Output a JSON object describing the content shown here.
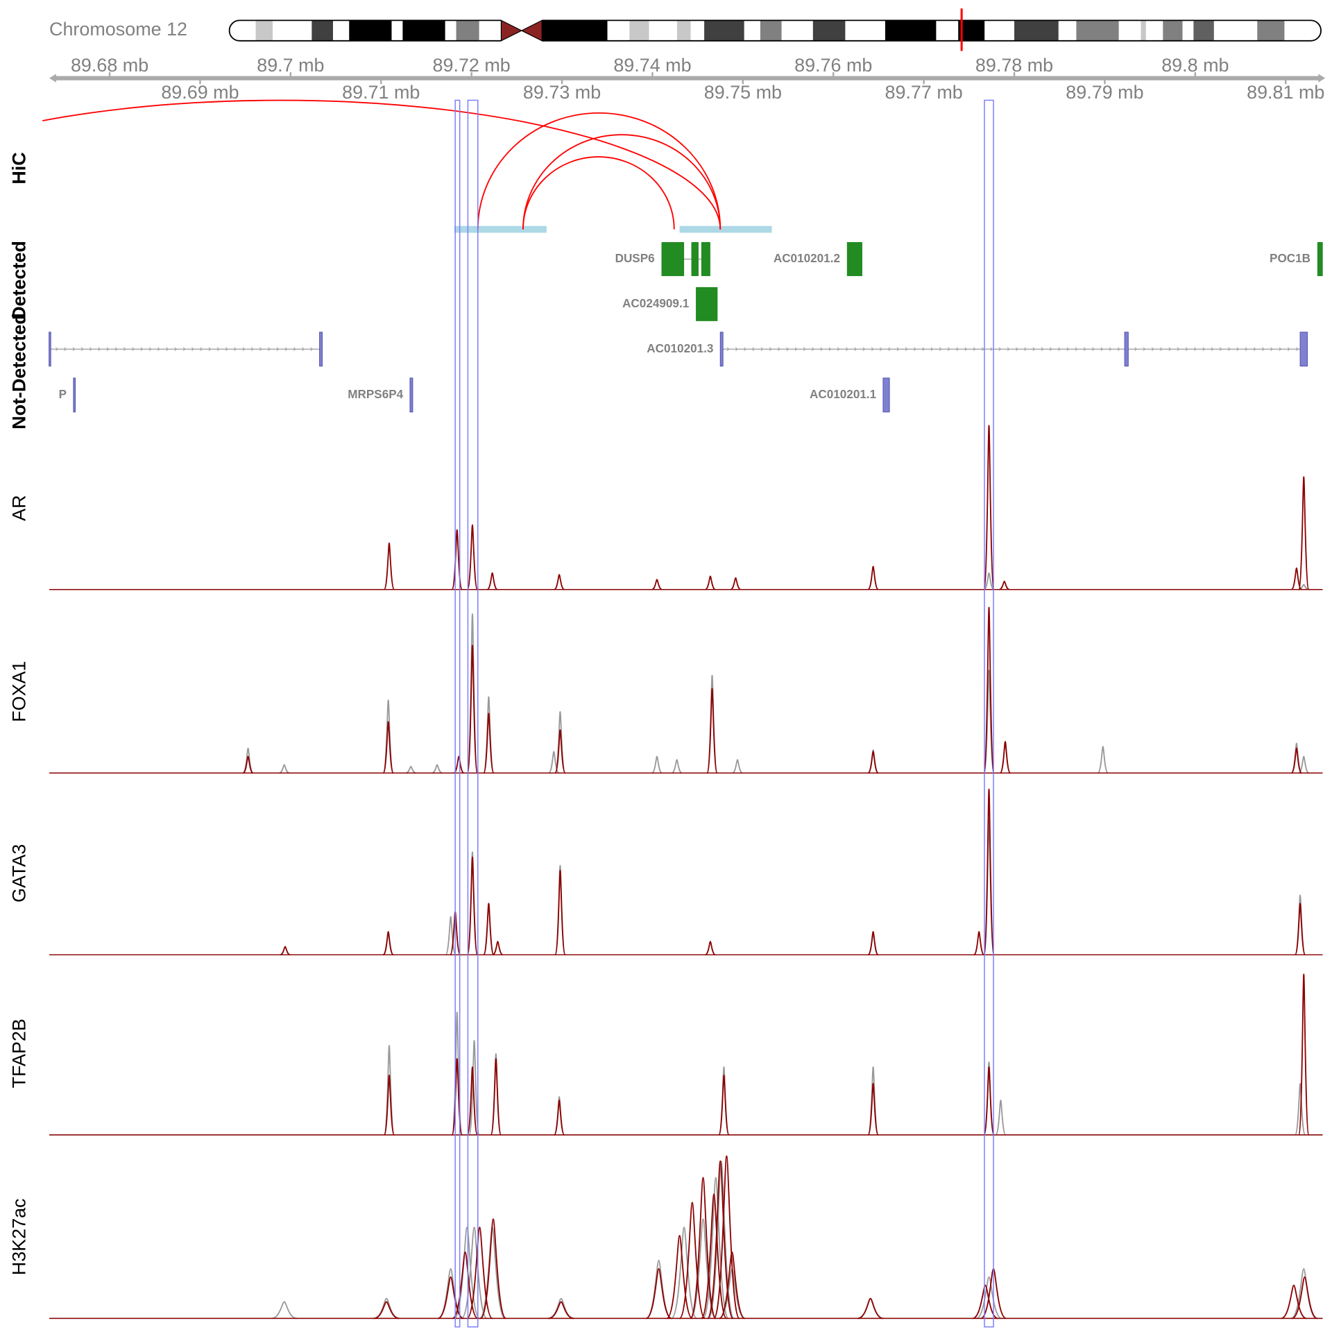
{
  "chromosome_label": "Chromosome 12",
  "chart_data": {
    "type": "genome-tracks",
    "xlim": [
      89.6737,
      89.8139
    ],
    "xticks": [
      {
        "value": 89.68,
        "label": "89.68 mb"
      },
      {
        "value": 89.69,
        "label": "89.69 mb"
      },
      {
        "value": 89.7,
        "label": "89.7 mb"
      },
      {
        "value": 89.71,
        "label": "89.71 mb"
      },
      {
        "value": 89.72,
        "label": "89.72 mb"
      },
      {
        "value": 89.73,
        "label": "89.73 mb"
      },
      {
        "value": 89.74,
        "label": "89.74 mb"
      },
      {
        "value": 89.75,
        "label": "89.75 mb"
      },
      {
        "value": 89.76,
        "label": "89.76 mb"
      },
      {
        "value": 89.77,
        "label": "89.77 mb"
      },
      {
        "value": 89.78,
        "label": "89.78 mb"
      },
      {
        "value": 89.79,
        "label": "89.79 mb"
      },
      {
        "value": 89.8,
        "label": "89.8 mb"
      },
      {
        "value": 89.81,
        "label": "89.81 mb"
      }
    ],
    "highlights": [
      [
        89.7182,
        89.7187
      ],
      [
        89.7196,
        89.7207
      ],
      [
        89.7767,
        89.7777
      ]
    ],
    "highlight_color": "#7b7bff",
    "hic": {
      "label": "HiC",
      "color": "#ff0000",
      "anchor_color": "#add8e6",
      "anchors": [
        [
          89.7181,
          89.7283
        ],
        [
          89.743,
          89.7532
        ]
      ],
      "arcs": [
        [
          89.6502,
          89.7475
        ],
        [
          89.7207,
          89.7475
        ],
        [
          89.7257,
          89.7475
        ],
        [
          89.7257,
          89.7424
        ]
      ]
    },
    "genes": [
      {
        "label": "Detected",
        "color": "#228b22",
        "rows": [
          [
            {
              "name": "DUSP6",
              "exons": [
                [
                  89.741,
                  89.7435
                ],
                [
                  89.7443,
                  89.7451
                ],
                [
                  89.7454,
                  89.7464
                ]
              ]
            },
            {
              "name": "AC010201.2",
              "exons": [
                [
                  89.7615,
                  89.7632
                ]
              ]
            },
            {
              "name": "POC1B",
              "exons": [
                [
                  89.8135,
                  89.8141
                ]
              ]
            }
          ],
          [
            {
              "name": "AC024909.1",
              "exons": [
                [
                  89.7448,
                  89.7472
                ]
              ]
            }
          ]
        ]
      },
      {
        "label": "Not-Detected",
        "color": "#8080d0",
        "rows": [
          [
            {
              "exons": [
                [
                  89.6733,
                  89.6733
                ],
                [
                  89.7032,
                  89.7035
                ]
              ]
            },
            {
              "name": "AC010201.3",
              "exons": [
                [
                  89.7475,
                  89.7478
                ],
                [
                  89.7922,
                  89.7926
                ],
                [
                  89.8116,
                  89.8124
                ]
              ]
            }
          ],
          [
            {
              "name": "P",
              "exons": [
                [
                  89.676,
                  89.6762
                ]
              ]
            },
            {
              "name": "MRPS6P4",
              "exons": [
                [
                  89.7132,
                  89.7135
                ]
              ]
            },
            {
              "name": "AC010201.1",
              "exons": [
                [
                  89.7655,
                  89.7662
                ]
              ]
            }
          ]
        ]
      }
    ],
    "tracks": [
      {
        "label": "AR",
        "ylim": [
          0,
          100
        ],
        "series": [
          {
            "color": "#999999",
            "x": [
              89.7772,
              89.812
            ],
            "values": [
              10,
              3
            ]
          },
          {
            "color": "#8b0000",
            "x": [
              89.7109,
              89.7184,
              89.7201,
              89.7223,
              89.7297,
              89.7405,
              89.7464,
              89.7492,
              89.7644,
              89.7772,
              89.7789,
              89.8112,
              89.812
            ],
            "values": [
              28,
              36,
              39,
              10,
              9,
              6,
              8,
              7,
              14,
              99,
              5,
              13,
              68
            ]
          }
        ]
      },
      {
        "label": "FOXA1",
        "ylim": [
          0,
          100
        ],
        "series": [
          {
            "color": "#999999",
            "x": [
              89.6953,
              89.6993,
              89.7108,
              89.7133,
              89.7162,
              89.7201,
              89.7219,
              89.7291,
              89.7298,
              89.7405,
              89.7427,
              89.7466,
              89.7494,
              89.7644,
              89.7772,
              89.779,
              89.7898,
              89.8112,
              89.812
            ],
            "values": [
              15,
              5,
              44,
              4,
              5,
              96,
              46,
              13,
              37,
              10,
              8,
              59,
              8,
              14,
              62,
              19,
              16,
              18,
              10
            ]
          },
          {
            "color": "#8b0000",
            "x": [
              89.6953,
              89.7108,
              89.7186,
              89.7201,
              89.7219,
              89.7298,
              89.7466,
              89.7644,
              89.7772,
              89.779,
              89.8112
            ],
            "values": [
              10,
              31,
              10,
              77,
              36,
              26,
              51,
              13,
              100,
              19,
              15
            ]
          }
        ]
      },
      {
        "label": "GATA3",
        "ylim": [
          0,
          100
        ],
        "series": [
          {
            "color": "#999999",
            "x": [
              89.7108,
              89.7177,
              89.7201,
              89.7219,
              89.7298,
              89.7644,
              89.7772,
              89.8116
            ],
            "values": [
              13,
              23,
              62,
              31,
              54,
              13,
              82,
              36
            ]
          },
          {
            "color": "#8b0000",
            "x": [
              89.6994,
              89.7108,
              89.7182,
              89.7201,
              89.7219,
              89.7229,
              89.7298,
              89.7464,
              89.7644,
              89.7761,
              89.7772,
              89.8116
            ],
            "values": [
              5,
              14,
              26,
              59,
              31,
              8,
              51,
              8,
              14,
              14,
              100,
              31
            ]
          }
        ]
      },
      {
        "label": "TFAP2B",
        "ylim": [
          0,
          100
        ],
        "series": [
          {
            "color": "#999999",
            "x": [
              89.7109,
              89.7184,
              89.7203,
              89.7227,
              89.7297,
              89.7479,
              89.7644,
              89.7772,
              89.7785,
              89.8116
            ],
            "values": [
              54,
              74,
              57,
              49,
              23,
              41,
              41,
              44,
              21,
              31
            ]
          },
          {
            "color": "#8b0000",
            "x": [
              89.7109,
              89.7184,
              89.7201,
              89.7227,
              89.7297,
              89.7479,
              89.7644,
              89.7772,
              89.812
            ],
            "values": [
              36,
              46,
              41,
              46,
              21,
              36,
              31,
              41,
              97
            ]
          }
        ]
      },
      {
        "label": "H3K27ac",
        "ylim": [
          0,
          100
        ],
        "series": [
          {
            "color": "#999999",
            "x": [
              89.6993,
              89.7106,
              89.7177,
              89.7195,
              89.7203,
              89.7223,
              89.7299,
              89.7407,
              89.7435,
              89.7456,
              89.747,
              89.7476,
              89.7488,
              89.7641,
              89.7772,
              89.812
            ],
            "values": [
              10,
              12,
              30,
              55,
              55,
              55,
              12,
              35,
              55,
              60,
              85,
              95,
              30,
              12,
              25,
              30
            ]
          },
          {
            "color": "#8b0000",
            "x": [
              89.7106,
              89.7177,
              89.7193,
              89.7209,
              89.7224,
              89.7299,
              89.7407,
              89.743,
              89.7444,
              89.7456,
              89.7468,
              89.7475,
              89.7482,
              89.7488,
              89.7641,
              89.7768,
              89.7777,
              89.8109,
              89.8121
            ],
            "values": [
              10,
              25,
              40,
              55,
              60,
              10,
              30,
              50,
              70,
              85,
              75,
              95,
              98,
              40,
              12,
              20,
              30,
              20,
              25
            ]
          }
        ]
      }
    ]
  }
}
